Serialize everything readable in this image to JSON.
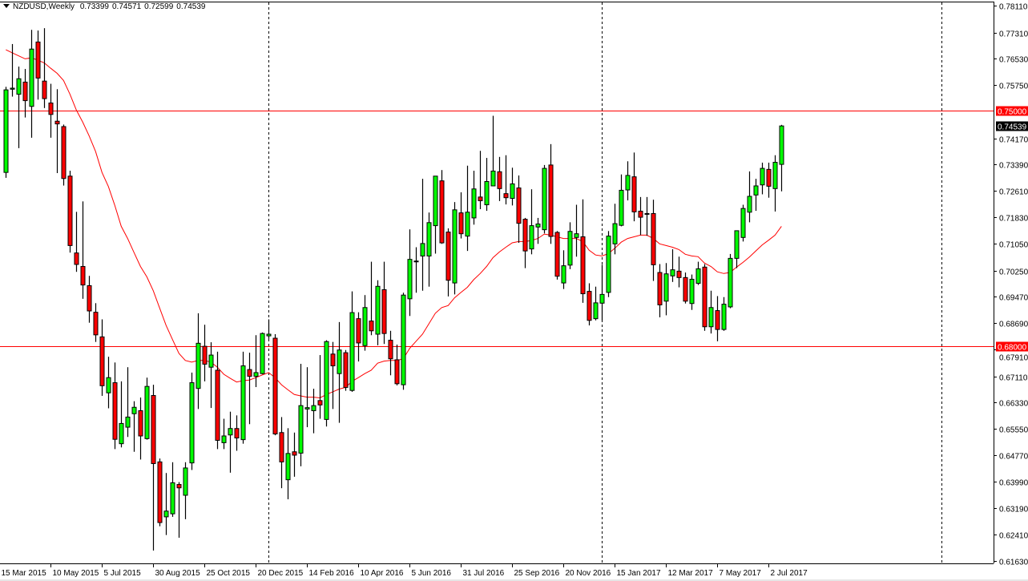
{
  "header": {
    "symbol": "NZDUSD,Weekly",
    "open": "0.73399",
    "high": "0.74571",
    "low": "0.72599",
    "close": "0.74539"
  },
  "colors": {
    "bull": "#00ff00",
    "bear": "#ff0000",
    "ma": "#ff0000",
    "hline": "#ff0000",
    "label_current_bg": "#000000"
  },
  "chart_data": {
    "type": "candlestick",
    "title": "NZDUSD,Weekly",
    "ylim": [
      0.6163,
      0.7811
    ],
    "y_ticks": [
      "0.78110",
      "0.77310",
      "0.76530",
      "0.75750",
      "0.74170",
      "0.73390",
      "0.72610",
      "0.71830",
      "0.71050",
      "0.70250",
      "0.69470",
      "0.68690",
      "0.67910",
      "0.67110",
      "0.66330",
      "0.65550",
      "0.64770",
      "0.63990",
      "0.63190",
      "0.62410",
      "0.61630"
    ],
    "x_labels": [
      "15 Mar 2015",
      "10 May 2015",
      "5 Jul 2015",
      "30 Aug 2015",
      "25 Oct 2015",
      "20 Dec 2015",
      "14 Feb 2016",
      "10 Apr 2016",
      "5 Jun 2016",
      "31 Jul 2016",
      "25 Sep 2016",
      "20 Nov 2016",
      "15 Jan 2017",
      "12 Mar 2017",
      "7 May 2017",
      "2 Jul 2017"
    ],
    "horizontal_lines": [
      {
        "price": 0.75,
        "label": "0.75000"
      },
      {
        "price": 0.68,
        "label": "0.68000"
      }
    ],
    "current_price": {
      "price": 0.74539,
      "label": "0.74539"
    },
    "period_separators_week_index": [
      41,
      93,
      146
    ],
    "candles_ohlc": [
      [
        0.7316,
        0.757,
        0.73,
        0.7561
      ],
      [
        0.7563,
        0.7697,
        0.7541,
        0.7566
      ],
      [
        0.7548,
        0.763,
        0.7388,
        0.7594
      ],
      [
        0.7584,
        0.7623,
        0.7479,
        0.7529
      ],
      [
        0.7512,
        0.7739,
        0.7419,
        0.7682
      ],
      [
        0.7703,
        0.7737,
        0.7532,
        0.7596
      ],
      [
        0.7587,
        0.7744,
        0.7507,
        0.7535
      ],
      [
        0.7522,
        0.7579,
        0.7419,
        0.7488
      ],
      [
        0.7468,
        0.7563,
        0.7314,
        0.746
      ],
      [
        0.7452,
        0.7458,
        0.7277,
        0.7298
      ],
      [
        0.7305,
        0.7321,
        0.7078,
        0.7099
      ],
      [
        0.7077,
        0.7199,
        0.7021,
        0.7043
      ],
      [
        0.7037,
        0.723,
        0.6941,
        0.6982
      ],
      [
        0.698,
        0.7009,
        0.687,
        0.6905
      ],
      [
        0.6901,
        0.6928,
        0.6813,
        0.6834
      ],
      [
        0.6828,
        0.688,
        0.6653,
        0.6683
      ],
      [
        0.6662,
        0.6769,
        0.6616,
        0.6707
      ],
      [
        0.6692,
        0.6752,
        0.6495,
        0.6524
      ],
      [
        0.6511,
        0.6696,
        0.65,
        0.6571
      ],
      [
        0.656,
        0.6738,
        0.6531,
        0.659
      ],
      [
        0.66,
        0.6637,
        0.6487,
        0.6619
      ],
      [
        0.6609,
        0.6648,
        0.6464,
        0.6534
      ],
      [
        0.6526,
        0.6707,
        0.6523,
        0.6681
      ],
      [
        0.6654,
        0.6686,
        0.6194,
        0.6452
      ],
      [
        0.6457,
        0.6467,
        0.6266,
        0.6277
      ],
      [
        0.6294,
        0.6424,
        0.624,
        0.6311
      ],
      [
        0.6303,
        0.6456,
        0.6294,
        0.6395
      ],
      [
        0.639,
        0.6397,
        0.6232,
        0.638
      ],
      [
        0.6358,
        0.6456,
        0.6287,
        0.6439
      ],
      [
        0.6454,
        0.6722,
        0.6433,
        0.6692
      ],
      [
        0.6675,
        0.6898,
        0.6614,
        0.6809
      ],
      [
        0.68,
        0.6864,
        0.6696,
        0.6747
      ],
      [
        0.6738,
        0.6812,
        0.6617,
        0.6774
      ],
      [
        0.6729,
        0.6784,
        0.6495,
        0.6521
      ],
      [
        0.6514,
        0.6585,
        0.6495,
        0.6534
      ],
      [
        0.6537,
        0.6606,
        0.6425,
        0.6556
      ],
      [
        0.6556,
        0.6595,
        0.649,
        0.6528
      ],
      [
        0.6523,
        0.6784,
        0.6511,
        0.6742
      ],
      [
        0.6731,
        0.6781,
        0.6569,
        0.6711
      ],
      [
        0.6711,
        0.6833,
        0.6679,
        0.6722
      ],
      [
        0.6719,
        0.6841,
        0.6717,
        0.6838
      ],
      [
        0.6831,
        0.688,
        0.6822,
        0.6836
      ],
      [
        0.6824,
        0.6836,
        0.6536,
        0.654
      ],
      [
        0.6544,
        0.659,
        0.6379,
        0.6457
      ],
      [
        0.6404,
        0.6557,
        0.6346,
        0.6482
      ],
      [
        0.6487,
        0.6544,
        0.6413,
        0.6477
      ],
      [
        0.6483,
        0.6748,
        0.6444,
        0.6624
      ],
      [
        0.6614,
        0.6738,
        0.656,
        0.6618
      ],
      [
        0.6609,
        0.6674,
        0.6542,
        0.6624
      ],
      [
        0.6639,
        0.6774,
        0.6585,
        0.6626
      ],
      [
        0.6583,
        0.6818,
        0.6562,
        0.6814
      ],
      [
        0.6777,
        0.6813,
        0.6614,
        0.6742
      ],
      [
        0.6719,
        0.6872,
        0.6573,
        0.6789
      ],
      [
        0.6781,
        0.6789,
        0.6668,
        0.6678
      ],
      [
        0.6669,
        0.6963,
        0.6665,
        0.69
      ],
      [
        0.6882,
        0.6901,
        0.6755,
        0.681
      ],
      [
        0.6802,
        0.6952,
        0.6787,
        0.6915
      ],
      [
        0.6875,
        0.7051,
        0.6833,
        0.6846
      ],
      [
        0.6836,
        0.6996,
        0.6803,
        0.6978
      ],
      [
        0.6968,
        0.7051,
        0.6807,
        0.6838
      ],
      [
        0.6818,
        0.6846,
        0.6714,
        0.6763
      ],
      [
        0.676,
        0.6805,
        0.6684,
        0.6689
      ],
      [
        0.6686,
        0.6959,
        0.6671,
        0.6952
      ],
      [
        0.6941,
        0.7147,
        0.689,
        0.7058
      ],
      [
        0.7051,
        0.7094,
        0.6959,
        0.7053
      ],
      [
        0.7068,
        0.7297,
        0.6965,
        0.7105
      ],
      [
        0.7068,
        0.7197,
        0.6977,
        0.7167
      ],
      [
        0.7158,
        0.7305,
        0.7075,
        0.7305
      ],
      [
        0.7291,
        0.7323,
        0.7104,
        0.7107
      ],
      [
        0.7139,
        0.715,
        0.6948,
        0.6996
      ],
      [
        0.6988,
        0.7228,
        0.6954,
        0.7205
      ],
      [
        0.7196,
        0.7257,
        0.712,
        0.7134
      ],
      [
        0.7127,
        0.7336,
        0.7083,
        0.7198
      ],
      [
        0.7181,
        0.7321,
        0.7161,
        0.7267
      ],
      [
        0.7243,
        0.738,
        0.7207,
        0.7232
      ],
      [
        0.722,
        0.7359,
        0.7202,
        0.7289
      ],
      [
        0.7276,
        0.7484,
        0.7276,
        0.732
      ],
      [
        0.7318,
        0.7362,
        0.7231,
        0.7268
      ],
      [
        0.7253,
        0.7367,
        0.7221,
        0.7241
      ],
      [
        0.7239,
        0.733,
        0.7218,
        0.7282
      ],
      [
        0.727,
        0.7307,
        0.7107,
        0.7165
      ],
      [
        0.7177,
        0.7181,
        0.7032,
        0.7083
      ],
      [
        0.7089,
        0.7266,
        0.7073,
        0.7158
      ],
      [
        0.7154,
        0.7181,
        0.7104,
        0.7163
      ],
      [
        0.7146,
        0.7338,
        0.7135,
        0.7328
      ],
      [
        0.7338,
        0.74,
        0.7104,
        0.7126
      ],
      [
        0.7138,
        0.7142,
        0.6998,
        0.7008
      ],
      [
        0.6988,
        0.7085,
        0.697,
        0.7039
      ],
      [
        0.7041,
        0.7168,
        0.7029,
        0.7141
      ],
      [
        0.7123,
        0.722,
        0.7066,
        0.7134
      ],
      [
        0.7125,
        0.7236,
        0.6929,
        0.6956
      ],
      [
        0.6963,
        0.6987,
        0.6862,
        0.6877
      ],
      [
        0.6882,
        0.6977,
        0.6877,
        0.6929
      ],
      [
        0.6928,
        0.7042,
        0.6877,
        0.6954
      ],
      [
        0.696,
        0.7142,
        0.6946,
        0.7127
      ],
      [
        0.7104,
        0.7223,
        0.7073,
        0.7164
      ],
      [
        0.7159,
        0.731,
        0.7156,
        0.7263
      ],
      [
        0.7264,
        0.7349,
        0.7233,
        0.7307
      ],
      [
        0.7303,
        0.7375,
        0.7171,
        0.7199
      ],
      [
        0.7201,
        0.7243,
        0.713,
        0.7183
      ],
      [
        0.7194,
        0.7243,
        0.7128,
        0.7192
      ],
      [
        0.7194,
        0.7235,
        0.6994,
        0.7042
      ],
      [
        0.7019,
        0.7044,
        0.6886,
        0.6923
      ],
      [
        0.6934,
        0.7047,
        0.6892,
        0.7015
      ],
      [
        0.7009,
        0.7088,
        0.6991,
        0.7027
      ],
      [
        0.7023,
        0.7066,
        0.6975,
        0.7004
      ],
      [
        0.7004,
        0.7019,
        0.6927,
        0.6934
      ],
      [
        0.6927,
        0.7013,
        0.6908,
        0.6999
      ],
      [
        0.6987,
        0.7051,
        0.6982,
        0.703
      ],
      [
        0.7035,
        0.7044,
        0.6846,
        0.6858
      ],
      [
        0.6858,
        0.6965,
        0.6838,
        0.6915
      ],
      [
        0.6906,
        0.6949,
        0.6815,
        0.685
      ],
      [
        0.685,
        0.6946,
        0.6846,
        0.6925
      ],
      [
        0.6917,
        0.7074,
        0.6913,
        0.7061
      ],
      [
        0.7061,
        0.7143,
        0.7032,
        0.7143
      ],
      [
        0.7123,
        0.722,
        0.7111,
        0.7209
      ],
      [
        0.7198,
        0.7319,
        0.7168,
        0.7245
      ],
      [
        0.7249,
        0.7297,
        0.7202,
        0.7276
      ],
      [
        0.7279,
        0.7345,
        0.7251,
        0.7328
      ],
      [
        0.7325,
        0.7345,
        0.7241,
        0.7275
      ],
      [
        0.7268,
        0.7367,
        0.72,
        0.7346
      ],
      [
        0.73399,
        0.74571,
        0.72599,
        0.74539
      ]
    ],
    "moving_average": [
      0.768,
      0.7671,
      0.7662,
      0.7653,
      0.7656,
      0.7649,
      0.7641,
      0.7625,
      0.761,
      0.7589,
      0.7548,
      0.7501,
      0.7465,
      0.7424,
      0.7378,
      0.7316,
      0.7274,
      0.7218,
      0.7156,
      0.712,
      0.7078,
      0.7037,
      0.7006,
      0.6965,
      0.6913,
      0.6862,
      0.682,
      0.6779,
      0.6758,
      0.6753,
      0.6758,
      0.6758,
      0.6753,
      0.6738,
      0.6717,
      0.6705,
      0.6694,
      0.6698,
      0.67,
      0.6707,
      0.6715,
      0.6722,
      0.6707,
      0.6686,
      0.6671,
      0.6657,
      0.6653,
      0.6649,
      0.6649,
      0.6647,
      0.6657,
      0.6665,
      0.6673,
      0.6678,
      0.6696,
      0.6707,
      0.6719,
      0.6729,
      0.675,
      0.6756,
      0.6758,
      0.6758,
      0.6763,
      0.6794,
      0.6815,
      0.6836,
      0.6867,
      0.6898,
      0.6915,
      0.6921,
      0.6944,
      0.696,
      0.6975,
      0.6998,
      0.7016,
      0.7037,
      0.7063,
      0.708,
      0.7094,
      0.7107,
      0.7111,
      0.7111,
      0.7114,
      0.712,
      0.7133,
      0.713,
      0.7125,
      0.712,
      0.712,
      0.712,
      0.7111,
      0.7085,
      0.7071,
      0.7068,
      0.7075,
      0.7091,
      0.7109,
      0.712,
      0.7125,
      0.713,
      0.713,
      0.712,
      0.7104,
      0.7099,
      0.7094,
      0.7087,
      0.7073,
      0.7068,
      0.7066,
      0.7047,
      0.7037,
      0.7021,
      0.7016,
      0.7019,
      0.7035,
      0.7049,
      0.7065,
      0.7083,
      0.7101,
      0.7115,
      0.713,
      0.7156
    ],
    "grid": false
  }
}
